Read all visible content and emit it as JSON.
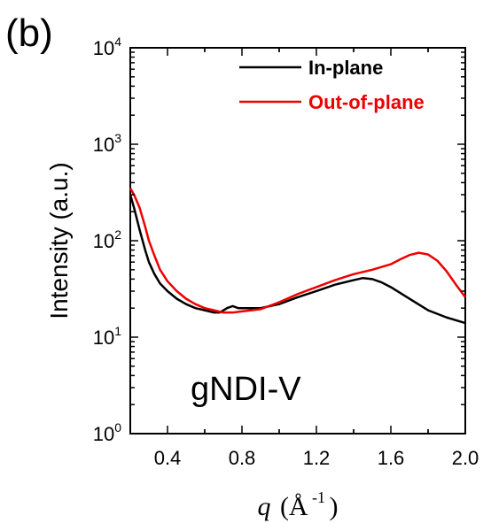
{
  "panel_label": "(b)",
  "chart_data": {
    "type": "line",
    "xlabel": {
      "symbol": "q",
      "unit_open": "(Å",
      "unit_sup": "-1",
      "unit_close": ")"
    },
    "ylabel": "Intensity (a.u.)",
    "xlim": [
      0.2,
      2.0
    ],
    "ylim": [
      1,
      10000
    ],
    "y_scale": "log",
    "x_ticks": [
      0.4,
      0.8,
      1.2,
      1.6,
      2.0
    ],
    "x_tick_labels": [
      "0.4",
      "0.8",
      "1.2",
      "1.6",
      "2.0"
    ],
    "y_ticks": [
      1,
      10,
      100,
      1000,
      10000
    ],
    "y_tick_labels": [
      {
        "base": "10",
        "exp": "0"
      },
      {
        "base": "10",
        "exp": "1"
      },
      {
        "base": "10",
        "exp": "2"
      },
      {
        "base": "10",
        "exp": "3"
      },
      {
        "base": "10",
        "exp": "4"
      }
    ],
    "grid": false,
    "legend_position": "top-right",
    "annotation": "gNDI-V",
    "series": [
      {
        "name": "In-plane",
        "color": "#000000",
        "x": [
          0.2,
          0.22,
          0.25,
          0.28,
          0.3,
          0.33,
          0.36,
          0.4,
          0.45,
          0.5,
          0.55,
          0.6,
          0.65,
          0.68,
          0.72,
          0.75,
          0.78,
          0.8,
          0.85,
          0.9,
          1.0,
          1.1,
          1.2,
          1.3,
          1.4,
          1.45,
          1.5,
          1.55,
          1.6,
          1.7,
          1.8,
          1.9,
          2.0
        ],
        "y": [
          300,
          220,
          130,
          80,
          60,
          45,
          36,
          30,
          25,
          22,
          20,
          19,
          18,
          18,
          20,
          21,
          20,
          20,
          20,
          20,
          22,
          26,
          30,
          35,
          39,
          41,
          40,
          37,
          33,
          25,
          19,
          16,
          14
        ]
      },
      {
        "name": "Out-of-plane",
        "color": "#ee0000",
        "x": [
          0.2,
          0.22,
          0.25,
          0.28,
          0.3,
          0.33,
          0.36,
          0.4,
          0.45,
          0.5,
          0.55,
          0.6,
          0.65,
          0.7,
          0.75,
          0.8,
          0.85,
          0.9,
          1.0,
          1.1,
          1.2,
          1.3,
          1.4,
          1.5,
          1.6,
          1.65,
          1.7,
          1.75,
          1.8,
          1.85,
          1.9,
          1.95,
          2.0
        ],
        "y": [
          350,
          300,
          220,
          140,
          100,
          70,
          50,
          38,
          30,
          25,
          22,
          20,
          19,
          18,
          18,
          18.5,
          19,
          19.5,
          23,
          28,
          33,
          39,
          45,
          50,
          57,
          64,
          71,
          75,
          72,
          62,
          48,
          35,
          26
        ]
      }
    ]
  }
}
